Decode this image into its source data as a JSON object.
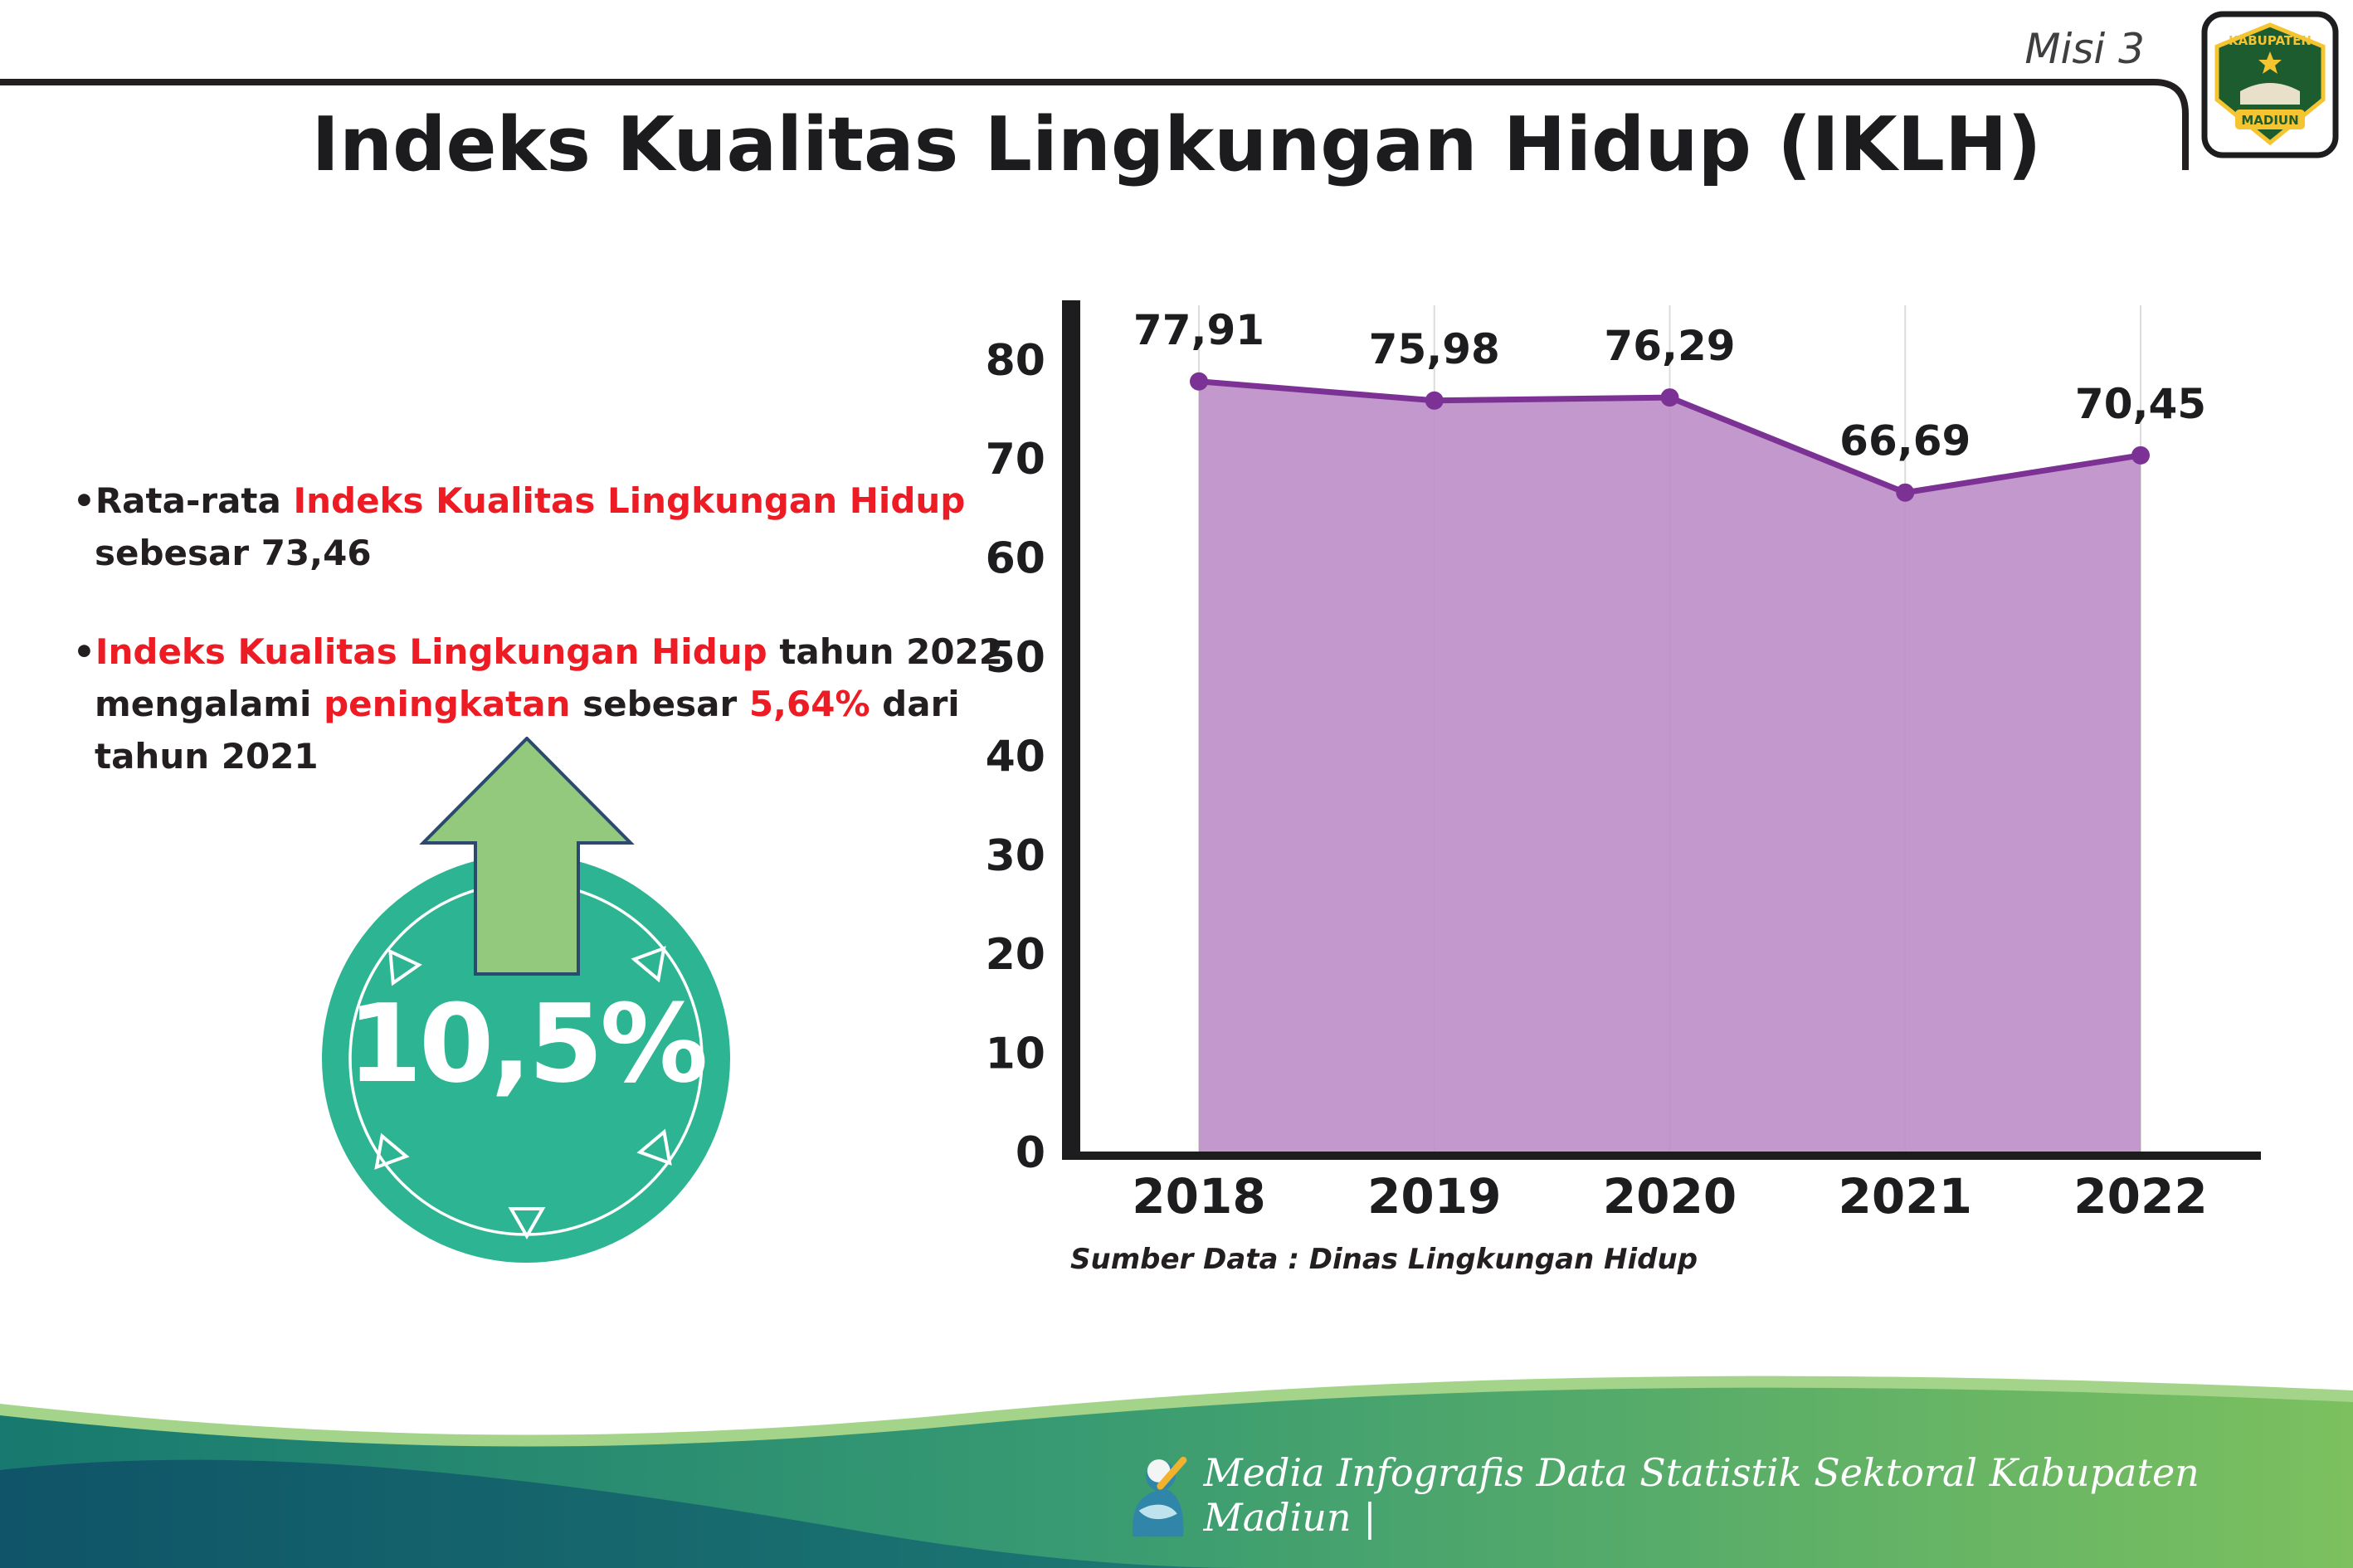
{
  "header": {
    "misi_label": "Misi 3"
  },
  "logo": {
    "top": "KABUPATEN",
    "bottom": "MADIUN"
  },
  "title": "Indeks Kualitas Lingkungan Hidup (IKLH)",
  "bullets": [
    {
      "segments": [
        {
          "text": "•Rata-rata "
        },
        {
          "text": "Indeks Kualitas Lingkungan Hidup"
        },
        {
          "text": " sebesar 73,46"
        }
      ]
    },
    {
      "segments": [
        {
          "text": "•"
        },
        {
          "text": "Indeks Kualitas Lingkungan Hidup"
        },
        {
          "text": " tahun 2022 mengalami "
        },
        {
          "text": "peningkatan"
        },
        {
          "text": " sebesar "
        },
        {
          "text": "5,64%"
        },
        {
          "text": " dari tahun 2021"
        }
      ]
    }
  ],
  "badge": {
    "value": "10,5%"
  },
  "chart_data": {
    "type": "area",
    "categories": [
      "2018",
      "2019",
      "2020",
      "2021",
      "2022"
    ],
    "values": [
      77.91,
      75.98,
      76.29,
      66.69,
      70.45
    ],
    "point_labels": [
      "77,91",
      "75,98",
      "76,29",
      "66,69",
      "70,45"
    ],
    "title": "Indeks Kualitas Lingkungan Hidup (IKLH)",
    "xlabel": "",
    "ylabel": "",
    "ylim": [
      0,
      80
    ],
    "yticks": [
      0,
      10,
      20,
      30,
      40,
      50,
      60,
      70,
      80
    ],
    "grid": "vertical-light",
    "legend": "none",
    "fill_color": "#bd8dc7",
    "line_color": "#7b3294",
    "source": "Sumber Data : Dinas Lingkungan Hidup"
  },
  "footer": {
    "text": "Media Infografis Data Statistik Sektoral Kabupaten Madiun |"
  }
}
